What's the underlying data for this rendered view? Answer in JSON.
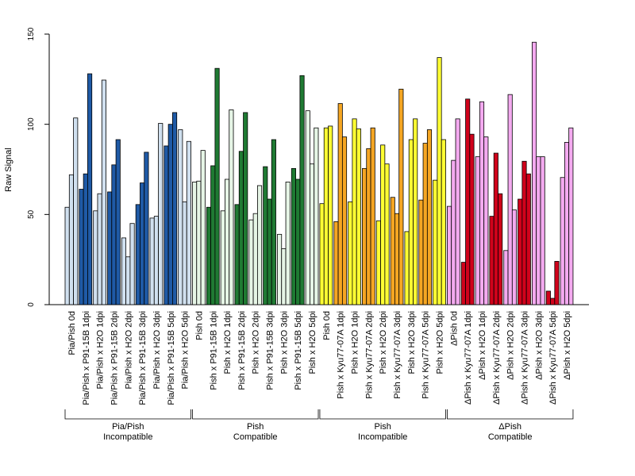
{
  "chart_data": {
    "type": "bar",
    "ylabel": "Raw Signal",
    "ylim": [
      0,
      150
    ],
    "yticks": [
      0,
      50,
      100,
      150
    ],
    "grid": false,
    "legend": "none",
    "categories": [
      "Pia/Pish 0d",
      "Pia/Pish x P91-15B 1dpi",
      "Pia/Pish x H2O 1dpi",
      "Pia/Pish x P91-15B 2dpi",
      "Pia/Pish x H2O 2dpi",
      "Pia/Pish x P91-15B 3dpi",
      "Pia/Pish x H2O 3dpi",
      "Pia/Pish x P91-15B 5dpi",
      "Pia/Pish x H2O 5dpi",
      "Pish 0d",
      "Pish x P91-15B 1dpi",
      "Pish x H2O 1dpi",
      "Pish x P91-15B 2dpi",
      "Pish x H2O 2dpi",
      "Pish x P91-15B 3dpi",
      "Pish x H2O 3dpi",
      "Pish x P91-15B 5dpi",
      "Pish x H2O 5dpi",
      "Pish 0d",
      "Pish x Kyu77-07A 1dpi",
      "Pish x H2O 1dpi",
      "Pish x Kyu77-07A 2dpi",
      "Pish x H2O 2dpi",
      "Pish x Kyu77-07A 3dpi",
      "Pish x H2O 3dpi",
      "Pish x Kyu77-07A 5dpi",
      "Pish x H2O 5dpi",
      "ΔPish 0d",
      "ΔPish x Kyu77-07A 1dpi",
      "ΔPish x H2O 1dpi",
      "ΔPish x Kyu77-07A 2dpi",
      "ΔPish x H2O 2dpi",
      "ΔPish x Kyu77-07A 3dpi",
      "ΔPish x H2O 3dpi",
      "ΔPish x Kyu77-07A 5dpi",
      "ΔPish x H2O 5dpi"
    ],
    "values": [
      [
        54,
        72,
        103.5
      ],
      [
        64,
        72.5,
        128
      ],
      [
        52,
        61.5,
        124.5
      ],
      [
        62.5,
        77.5,
        91.5
      ],
      [
        37,
        26.5,
        45
      ],
      [
        55.5,
        67.5,
        84.5
      ],
      [
        48,
        49,
        100.5
      ],
      [
        88,
        100,
        106.5
      ],
      [
        97,
        57,
        90.5
      ],
      [
        68,
        68.5,
        85.5
      ],
      [
        54,
        77,
        131
      ],
      [
        52,
        69.5,
        108
      ],
      [
        55.5,
        85,
        106.5
      ],
      [
        47,
        50.5,
        66
      ],
      [
        76.5,
        58.5,
        91.5
      ],
      [
        39,
        31,
        68
      ],
      [
        75.5,
        69.5,
        127
      ],
      [
        107.5,
        78,
        98
      ],
      [
        56,
        98,
        99
      ],
      [
        46,
        111.5,
        93
      ],
      [
        57,
        103,
        97.5
      ],
      [
        75.5,
        86.5,
        98
      ],
      [
        46.5,
        88.5,
        78
      ],
      [
        59.5,
        50.5,
        119.5
      ],
      [
        40.5,
        91.5,
        103
      ],
      [
        58,
        89.5,
        97
      ],
      [
        69,
        137,
        91.5
      ],
      [
        54.5,
        80,
        103
      ],
      [
        23.5,
        114,
        94.5
      ],
      [
        82,
        112.5,
        93
      ],
      [
        49,
        84,
        61.5
      ],
      [
        30,
        116.5,
        52.5
      ],
      [
        58.5,
        79.5,
        72.5
      ],
      [
        145.5,
        82,
        82
      ],
      [
        7.5,
        3.5,
        24
      ],
      [
        70.5,
        90,
        98
      ]
    ],
    "colors": [
      "#d0e0ef",
      "#1f5aa6",
      "#d0e0ef",
      "#1f5aa6",
      "#d0e0ef",
      "#1f5aa6",
      "#d0e0ef",
      "#1f5aa6",
      "#d0e0ef",
      "#e6f5e6",
      "#1f7a33",
      "#e6f5e6",
      "#1f7a33",
      "#e6f5e6",
      "#1f7a33",
      "#e6f5e6",
      "#1f7a33",
      "#e6f5e6",
      "#ffff33",
      "#f5a623",
      "#ffff33",
      "#f5a623",
      "#ffff33",
      "#f5a623",
      "#ffff33",
      "#f5a623",
      "#ffff33",
      "#f4aaf0",
      "#d0021b",
      "#f4aaf0",
      "#d0021b",
      "#f4aaf0",
      "#d0021b",
      "#f4aaf0",
      "#d0021b",
      "#f4aaf0"
    ],
    "groups": [
      {
        "line1": "Pia/Pish",
        "line2": "Incompatible",
        "from": 0,
        "to": 8
      },
      {
        "line1": "Pish",
        "line2": "Compatible",
        "from": 9,
        "to": 17
      },
      {
        "line1": "Pish",
        "line2": "Incompatible",
        "from": 18,
        "to": 26
      },
      {
        "line1": "ΔPish",
        "line2": "Compatible",
        "from": 27,
        "to": 35
      }
    ]
  }
}
